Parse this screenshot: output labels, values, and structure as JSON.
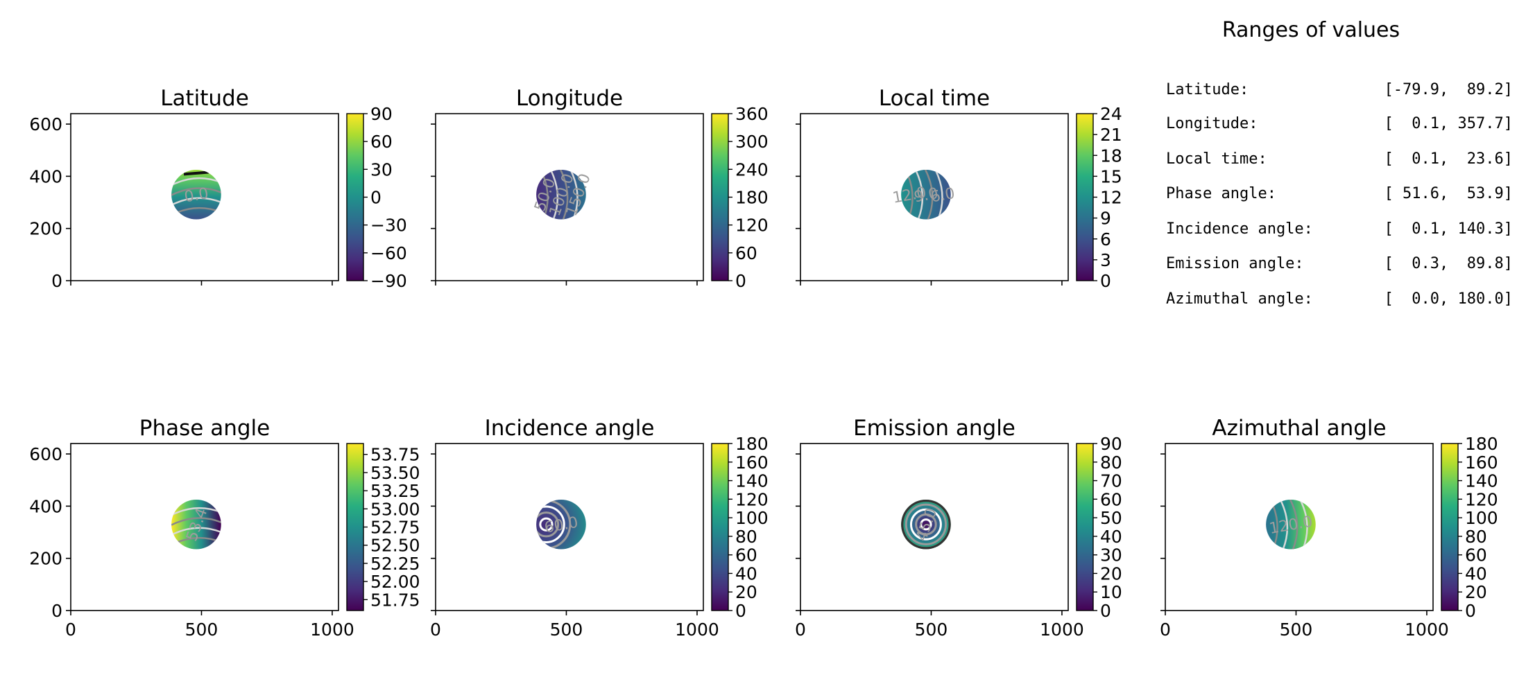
{
  "panels": [
    {
      "title": "Latitude",
      "cbar_ticks": [
        "90",
        "60",
        "30",
        "0",
        "−30",
        "−60",
        "−90"
      ],
      "cbar_min": -90,
      "cbar_max": 90,
      "contour_labels": [
        "0.0"
      ]
    },
    {
      "title": "Longitude",
      "cbar_ticks": [
        "360",
        "300",
        "240",
        "180",
        "120",
        "60",
        "0"
      ],
      "cbar_min": 0,
      "cbar_max": 360,
      "contour_labels": [
        "50.0",
        "100.0",
        "150.0"
      ]
    },
    {
      "title": "Local time",
      "cbar_ticks": [
        "24",
        "21",
        "18",
        "15",
        "12",
        "9",
        "6",
        "3",
        "0"
      ],
      "cbar_min": 0,
      "cbar_max": 24,
      "contour_labels": [
        "12.0",
        "9.0",
        "6.0"
      ]
    },
    {
      "title": "Phase angle",
      "cbar_ticks": [
        "53.75",
        "53.50",
        "53.25",
        "53.00",
        "52.75",
        "52.50",
        "52.25",
        "52.00",
        "51.75"
      ],
      "cbar_min": 51.6,
      "cbar_max": 53.9,
      "contour_labels": [
        "53.4"
      ]
    },
    {
      "title": "Incidence angle",
      "cbar_ticks": [
        "180",
        "160",
        "140",
        "120",
        "100",
        "80",
        "60",
        "40",
        "20",
        "0"
      ],
      "cbar_min": 0,
      "cbar_max": 180,
      "contour_labels": [
        "60.0"
      ]
    },
    {
      "title": "Emission angle",
      "cbar_ticks": [
        "90",
        "80",
        "70",
        "60",
        "50",
        "40",
        "30",
        "20",
        "10",
        "0"
      ],
      "cbar_min": 0,
      "cbar_max": 90,
      "contour_labels": [
        "45.0"
      ]
    },
    {
      "title": "Azimuthal angle",
      "cbar_ticks": [
        "180",
        "160",
        "140",
        "120",
        "100",
        "80",
        "60",
        "40",
        "20",
        "0"
      ],
      "cbar_min": 0,
      "cbar_max": 180,
      "contour_labels": [
        "120.0"
      ]
    }
  ],
  "axes": {
    "y_ticks": [
      "0",
      "200",
      "400",
      "600"
    ],
    "x_ticks": [
      "0",
      "500",
      "1000"
    ]
  },
  "chart_data": {
    "type": "heatmap",
    "x_range": [
      0,
      1024
    ],
    "y_range": [
      0,
      640
    ],
    "disc": {
      "center_x": 480,
      "center_y": 330,
      "radius": 95
    },
    "colormap": "viridis",
    "series": [
      {
        "name": "Latitude",
        "range": [
          -79.9,
          89.2
        ]
      },
      {
        "name": "Longitude",
        "range": [
          0.1,
          357.7
        ]
      },
      {
        "name": "Local time",
        "range": [
          0.1,
          23.6
        ]
      },
      {
        "name": "Phase angle",
        "range": [
          51.6,
          53.9
        ]
      },
      {
        "name": "Incidence angle",
        "range": [
          0.1,
          140.3
        ]
      },
      {
        "name": "Emission angle",
        "range": [
          0.3,
          89.8
        ]
      },
      {
        "name": "Azimuthal angle",
        "range": [
          0.0,
          180.0
        ]
      }
    ]
  },
  "ranges": {
    "title": "Ranges of values",
    "rows": [
      {
        "label": "Latitude:",
        "value": "[-79.9,  89.2]"
      },
      {
        "label": "Longitude:",
        "value": "[  0.1, 357.7]"
      },
      {
        "label": "Local time:",
        "value": "[  0.1,  23.6]"
      },
      {
        "label": "Phase angle:",
        "value": "[ 51.6,  53.9]"
      },
      {
        "label": "Incidence angle:",
        "value": "[  0.1, 140.3]"
      },
      {
        "label": "Emission angle:",
        "value": "[  0.3,  89.8]"
      },
      {
        "label": "Azimuthal angle:",
        "value": "[  0.0, 180.0]"
      }
    ]
  }
}
